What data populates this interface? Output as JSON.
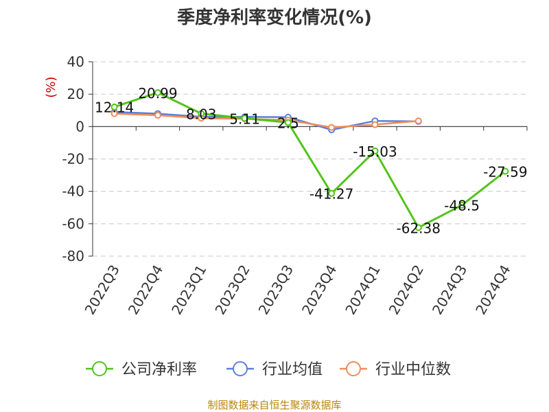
{
  "chart_data": {
    "type": "line",
    "title": "季度净利率变化情况(%)",
    "ylabel": "(%)",
    "categories": [
      "2022Q3",
      "2022Q4",
      "2023Q1",
      "2023Q2",
      "2023Q3",
      "2023Q4",
      "2024Q1",
      "2024Q2",
      "2024Q3",
      "2024Q4"
    ],
    "ylim": [
      -80,
      40
    ],
    "yticks": [
      40,
      20,
      0,
      -20,
      -40,
      -60,
      -80
    ],
    "grid": true,
    "legend_position": "bottom",
    "series": [
      {
        "name": "公司净利率",
        "color": "#52c41a",
        "values": [
          12.14,
          20.99,
          8.03,
          5.11,
          2.5,
          -41.27,
          -15.03,
          -62.38,
          -48.5,
          -27.59
        ],
        "labels": [
          "12.14",
          "20.99",
          "8.03",
          "5.11",
          "2.5",
          "-41.27",
          "-15.03",
          "-62.38",
          "-48.5",
          "-27.59"
        ]
      },
      {
        "name": "行业均值",
        "color": "#5b7fdb",
        "values": [
          9.0,
          8.0,
          6.0,
          6.0,
          5.8,
          -2.0,
          3.5,
          3.2,
          null,
          null
        ]
      },
      {
        "name": "行业中位数",
        "color": "#f08c5a",
        "values": [
          8.0,
          7.0,
          5.2,
          4.8,
          4.0,
          -0.5,
          1.2,
          3.5,
          null,
          null
        ]
      }
    ]
  },
  "footer": {
    "source": "制图数据来自恒生聚源数据库"
  }
}
